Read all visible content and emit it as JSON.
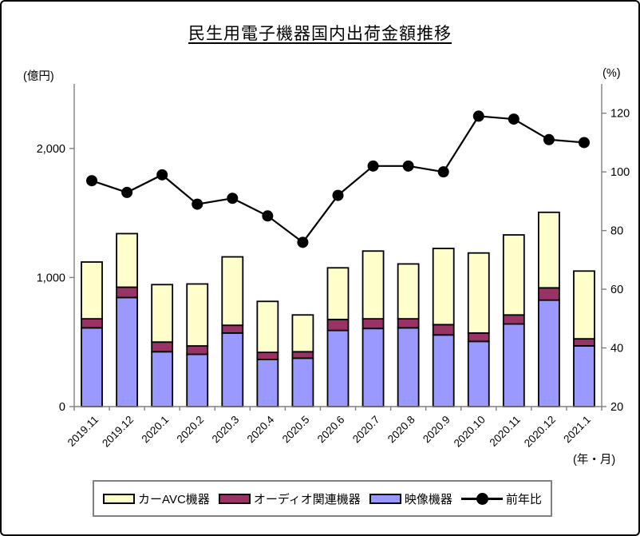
{
  "title": "民生用電子機器国内出荷金額推移",
  "chart_data": {
    "type": "bar+line",
    "description": "stacked bars on left axis with line series on right axis",
    "categories": [
      "2019.11",
      "2019.12",
      "2020.1",
      "2020.2",
      "2020.3",
      "2020.4",
      "2020.5",
      "2020.6",
      "2020.7",
      "2020.8",
      "2020.9",
      "2020.10",
      "2020.11",
      "2020.12",
      "2021.1"
    ],
    "series": [
      {
        "key": "video-equipment",
        "name": "映像機器",
        "type": "bar",
        "stack_order": 1,
        "color": "#9999FF",
        "values": [
          610,
          845,
          425,
          405,
          570,
          365,
          375,
          590,
          605,
          610,
          555,
          505,
          640,
          825,
          470
        ]
      },
      {
        "key": "audio-related",
        "name": "オーディオ関連機器",
        "type": "bar",
        "stack_order": 2,
        "color": "#993366",
        "values": [
          70,
          80,
          75,
          65,
          60,
          55,
          50,
          85,
          75,
          70,
          80,
          65,
          70,
          95,
          55
        ]
      },
      {
        "key": "car-avc",
        "name": "カーAVC機器",
        "type": "bar",
        "stack_order": 3,
        "color": "#FFFFCC",
        "values": [
          440,
          415,
          445,
          480,
          530,
          395,
          285,
          400,
          525,
          425,
          590,
          620,
          620,
          585,
          525
        ]
      },
      {
        "key": "yoy-ratio",
        "name": "前年比",
        "type": "line",
        "axis": "right",
        "color": "#000000",
        "marker": "circle",
        "values": [
          97,
          93,
          99,
          89,
          91,
          85,
          76,
          92,
          102,
          102,
          100,
          119,
          118,
          111,
          110
        ]
      }
    ],
    "left_axis": {
      "unit": "(億円)",
      "min": 0,
      "max": 2500,
      "tick_values": [
        0,
        1000,
        2000
      ],
      "tick_labels": [
        "0",
        "1,000",
        "2,000"
      ]
    },
    "right_axis": {
      "unit": "(%)",
      "min": 20,
      "max": 130,
      "tick_values": [
        20,
        40,
        60,
        80,
        100,
        120
      ]
    },
    "x_axis": {
      "unit": "(年・月)"
    },
    "legend": {
      "order": [
        "car-avc",
        "audio-related",
        "video-equipment",
        "yoy-ratio"
      ],
      "position": "bottom"
    },
    "grid": "off",
    "axis_color": "#808080"
  }
}
